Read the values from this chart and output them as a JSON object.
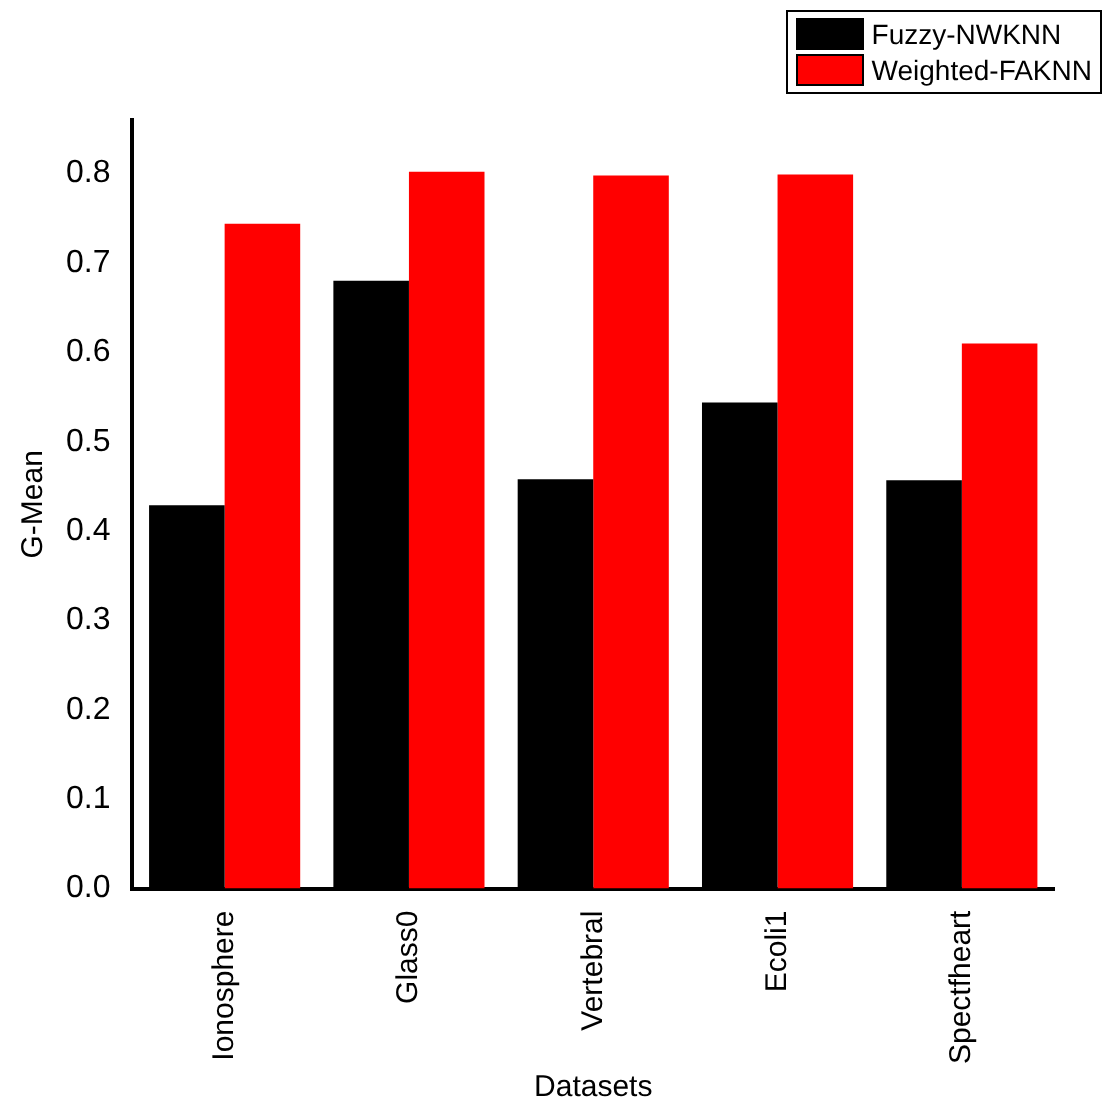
{
  "chart_data": {
    "type": "bar",
    "xlabel": "Datasets",
    "ylabel": "G-Mean",
    "categories": [
      "Ionosphere",
      "Glass0",
      "Vertebral",
      "Ecoli1",
      "Spectfheart"
    ],
    "series": [
      {
        "name": "Fuzzy-NWKNN",
        "color": "#000000",
        "values": [
          0.429,
          0.68,
          0.458,
          0.544,
          0.457
        ]
      },
      {
        "name": "Weighted-FAKNN",
        "color": "#ff0000",
        "values": [
          0.744,
          0.802,
          0.798,
          0.799,
          0.61
        ]
      }
    ],
    "ylim": [
      0,
      0.86
    ],
    "yticks": [
      {
        "value": 0,
        "label": "0.0"
      },
      0.1,
      0.2,
      0.3,
      0.4,
      0.5,
      0.6,
      0.7,
      0.8
    ],
    "grid": false,
    "legend": "top right"
  }
}
